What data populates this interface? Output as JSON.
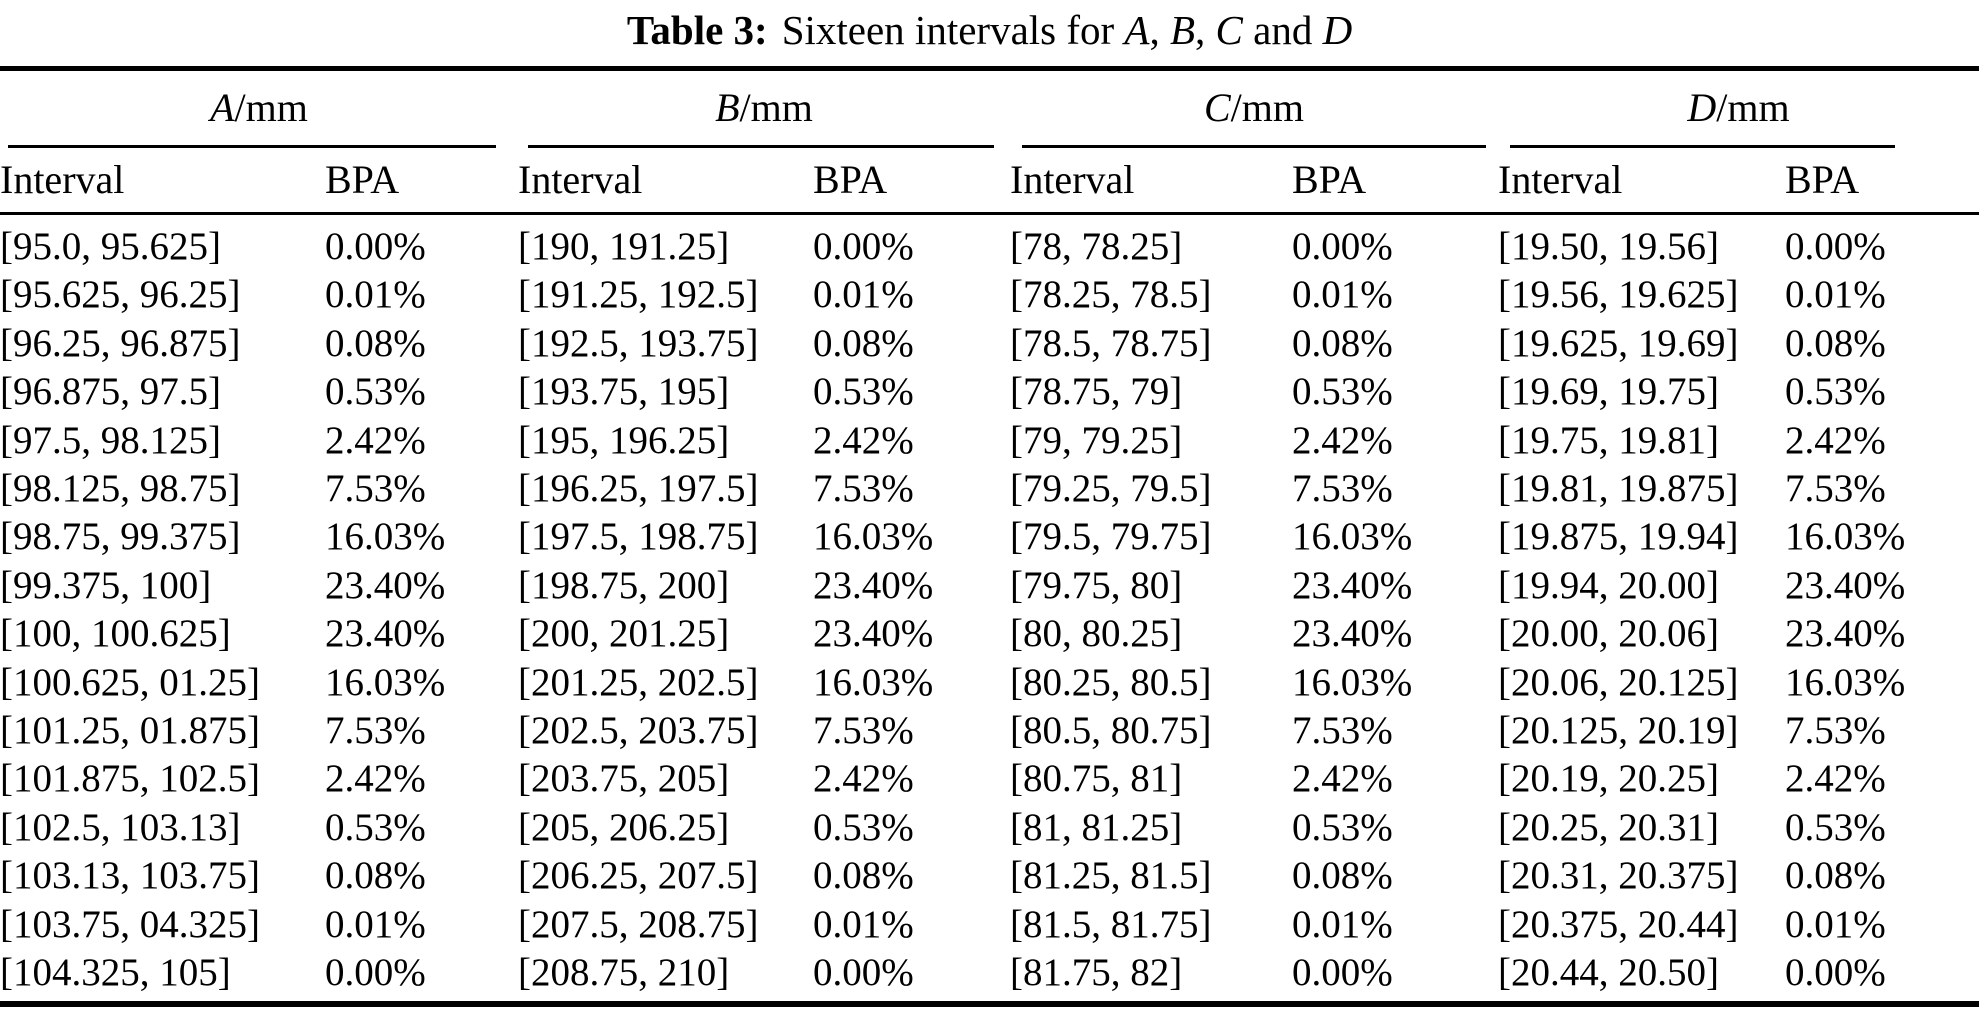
{
  "page": {
    "background": "#ffffff",
    "text_color": "#000000"
  },
  "title": {
    "parts": [
      "Table 3:",
      "Sixteen intervals for ",
      "A",
      ", ",
      "B",
      ", ",
      "C",
      " and ",
      "D"
    ]
  },
  "table": {
    "groups": [
      {
        "letter": "A",
        "unit": "/mm",
        "col1": "Interval",
        "col2": "BPA"
      },
      {
        "letter": "B",
        "unit": "/mm",
        "col1": "Interval",
        "col2": "BPA"
      },
      {
        "letter": "C",
        "unit": "/mm",
        "col1": "Interval",
        "col2": "BPA"
      },
      {
        "letter": "D",
        "unit": "/mm",
        "col1": "Interval",
        "col2": "BPA"
      }
    ],
    "rows": [
      [
        "[95.0, 95.625]",
        "0.00%",
        "[190, 191.25]",
        "0.00%",
        "[78, 78.25]",
        "0.00%",
        "[19.50, 19.56]",
        "0.00%"
      ],
      [
        "[95.625, 96.25]",
        "0.01%",
        "[191.25, 192.5]",
        "0.01%",
        "[78.25, 78.5]",
        "0.01%",
        "[19.56, 19.625]",
        "0.01%"
      ],
      [
        "[96.25, 96.875]",
        "0.08%",
        "[192.5, 193.75]",
        "0.08%",
        "[78.5, 78.75]",
        "0.08%",
        "[19.625, 19.69]",
        "0.08%"
      ],
      [
        "[96.875, 97.5]",
        "0.53%",
        "[193.75, 195]",
        "0.53%",
        "[78.75, 79]",
        "0.53%",
        "[19.69, 19.75]",
        "0.53%"
      ],
      [
        "[97.5, 98.125]",
        "2.42%",
        "[195, 196.25]",
        "2.42%",
        "[79, 79.25]",
        "2.42%",
        "[19.75, 19.81]",
        "2.42%"
      ],
      [
        "[98.125, 98.75]",
        "7.53%",
        "[196.25, 197.5]",
        "7.53%",
        "[79.25, 79.5]",
        "7.53%",
        "[19.81, 19.875]",
        "7.53%"
      ],
      [
        "[98.75, 99.375]",
        "16.03%",
        "[197.5, 198.75]",
        "16.03%",
        "[79.5, 79.75]",
        "16.03%",
        "[19.875, 19.94]",
        "16.03%"
      ],
      [
        "[99.375, 100]",
        "23.40%",
        "[198.75, 200]",
        "23.40%",
        "[79.75, 80]",
        "23.40%",
        "[19.94, 20.00]",
        "23.40%"
      ],
      [
        "[100, 100.625]",
        "23.40%",
        "[200, 201.25]",
        "23.40%",
        "[80, 80.25]",
        "23.40%",
        "[20.00, 20.06]",
        "23.40%"
      ],
      [
        "[100.625, 01.25]",
        "16.03%",
        "[201.25, 202.5]",
        "16.03%",
        "[80.25, 80.5]",
        "16.03%",
        "[20.06, 20.125]",
        "16.03%"
      ],
      [
        "[101.25, 01.875]",
        "7.53%",
        "[202.5, 203.75]",
        "7.53%",
        "[80.5, 80.75]",
        "7.53%",
        "[20.125, 20.19]",
        "7.53%"
      ],
      [
        "[101.875, 102.5]",
        "2.42%",
        "[203.75, 205]",
        "2.42%",
        "[80.75, 81]",
        "2.42%",
        "[20.19, 20.25]",
        "2.42%"
      ],
      [
        "[102.5, 103.13]",
        "0.53%",
        "[205, 206.25]",
        "0.53%",
        "[81, 81.25]",
        "0.53%",
        "[20.25, 20.31]",
        "0.53%"
      ],
      [
        "[103.13, 103.75]",
        "0.08%",
        "[206.25, 207.5]",
        "0.08%",
        "[81.25, 81.5]",
        "0.08%",
        "[20.31, 20.375]",
        "0.08%"
      ],
      [
        "[103.75, 04.325]",
        "0.01%",
        "[207.5, 208.75]",
        "0.01%",
        "[81.5, 81.75]",
        "0.01%",
        "[20.375, 20.44]",
        "0.01%"
      ],
      [
        "[104.325, 105]",
        "0.00%",
        "[208.75, 210]",
        "0.00%",
        "[81.75, 82]",
        "0.00%",
        "[20.44, 20.50]",
        "0.00%"
      ]
    ]
  }
}
